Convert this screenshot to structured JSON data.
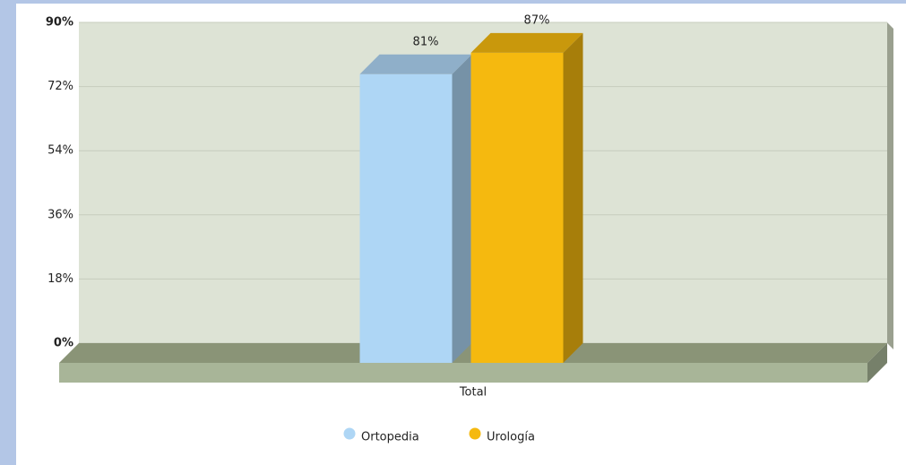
{
  "chart_data": {
    "type": "bar3d",
    "categories": [
      "Total"
    ],
    "series": [
      {
        "name": "Ortopedia",
        "color": "#aed6f5",
        "values": [
          81
        ],
        "value_labels": [
          "81%"
        ]
      },
      {
        "name": "Urología",
        "color": "#f5b90f",
        "values": [
          87
        ],
        "value_labels": [
          "87%"
        ]
      }
    ],
    "ylim": [
      0,
      90
    ],
    "yticks": [
      {
        "value": 0,
        "label": "0%"
      },
      {
        "value": 18,
        "label": "18%"
      },
      {
        "value": 36,
        "label": "36%"
      },
      {
        "value": 54,
        "label": "54%"
      },
      {
        "value": 72,
        "label": "72%"
      },
      {
        "value": 90,
        "label": "90%"
      }
    ],
    "grid": true,
    "legend": "bottom"
  }
}
